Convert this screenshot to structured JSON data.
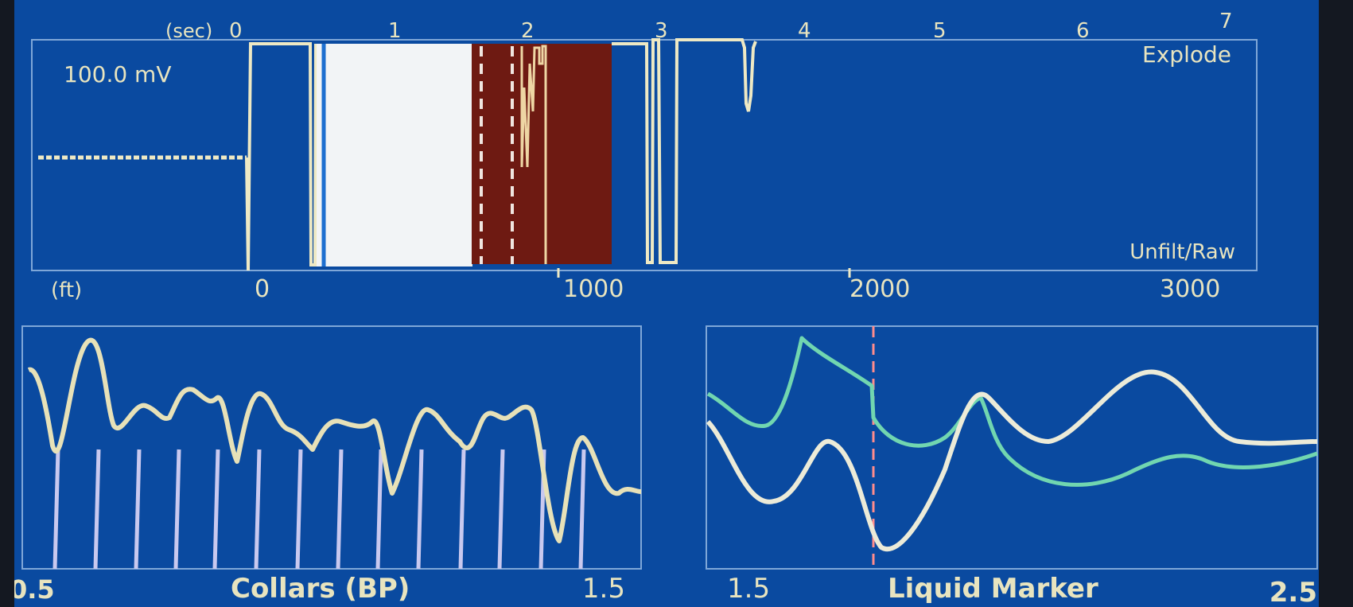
{
  "top_panel": {
    "time_axis": {
      "unit_label": "(sec)",
      "ticks": [
        "0",
        "1",
        "2",
        "3",
        "4",
        "5",
        "6",
        "7"
      ]
    },
    "depth_axis": {
      "unit_label": "(ft)",
      "ticks": [
        "0",
        "1000",
        "2000",
        "3000"
      ]
    },
    "voltage_label": "100.0 mV",
    "explode_label": "Explode",
    "mode_label": "Unfilt/Raw",
    "colors": {
      "background": "#0a4aa0",
      "trace": "#eee9c4",
      "white_band": "#f2f4f6",
      "maroon_band": "#6e1a12",
      "grid": "#7fa7d8"
    }
  },
  "collars_panel": {
    "title": "Collars (BP)",
    "x_min_label": "0.5",
    "x_max_label": "1.5",
    "trace_color": "#e7e1b8",
    "marker_color": "#c9c9ef",
    "marker_count": 14
  },
  "liquid_panel": {
    "title": "Liquid Marker",
    "x_min_label": "1.5",
    "x_max_label": "2.5",
    "trace_colors": {
      "primary": "#ecebd8",
      "secondary": "#71d6b0"
    },
    "marker_color": "#ff8c8c"
  }
}
